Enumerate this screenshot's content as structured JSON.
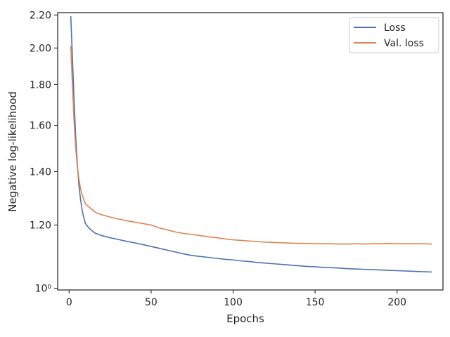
{
  "chart_data": {
    "type": "line",
    "title": "",
    "xlabel": "Epochs",
    "ylabel": "Negative log-likelihood",
    "xlim": [
      -7,
      228
    ],
    "ylim": [
      0.995,
      2.215
    ],
    "yscale": "log",
    "grid": false,
    "legend_position": "top-right",
    "x_ticks": [
      {
        "value": 0,
        "label": "0"
      },
      {
        "value": 50,
        "label": "50"
      },
      {
        "value": 100,
        "label": "100"
      },
      {
        "value": 150,
        "label": "150"
      },
      {
        "value": 200,
        "label": "200"
      }
    ],
    "y_ticks": [
      {
        "value": 1.0,
        "label": "10⁰"
      },
      {
        "value": 1.2,
        "label": "1.20"
      },
      {
        "value": 1.4,
        "label": "1.40"
      },
      {
        "value": 1.6,
        "label": "1.60"
      },
      {
        "value": 1.8,
        "label": "1.80"
      },
      {
        "value": 2.0,
        "label": "2.00"
      },
      {
        "value": 2.2,
        "label": "2.20"
      }
    ],
    "series": [
      {
        "name": "Loss",
        "color": "#4c72b0",
        "x": [
          1,
          2,
          3,
          4,
          5,
          6,
          7,
          8,
          9,
          10,
          12,
          14,
          16,
          18,
          20,
          25,
          30,
          35,
          40,
          45,
          50,
          55,
          60,
          65,
          70,
          75,
          80,
          85,
          90,
          95,
          100,
          105,
          110,
          115,
          120,
          125,
          130,
          135,
          140,
          145,
          150,
          155,
          160,
          165,
          170,
          175,
          180,
          185,
          190,
          195,
          200,
          205,
          210,
          215,
          221
        ],
        "y": [
          2.19,
          1.95,
          1.72,
          1.55,
          1.43,
          1.345,
          1.29,
          1.25,
          1.225,
          1.205,
          1.19,
          1.18,
          1.172,
          1.168,
          1.164,
          1.157,
          1.151,
          1.145,
          1.14,
          1.134,
          1.128,
          1.122,
          1.116,
          1.11,
          1.104,
          1.099,
          1.096,
          1.093,
          1.09,
          1.087,
          1.085,
          1.082,
          1.08,
          1.077,
          1.075,
          1.073,
          1.071,
          1.069,
          1.067,
          1.065,
          1.064,
          1.062,
          1.061,
          1.06,
          1.058,
          1.057,
          1.056,
          1.055,
          1.054,
          1.053,
          1.052,
          1.051,
          1.05,
          1.049,
          1.048
        ]
      },
      {
        "name": "Val. loss",
        "color": "#dd8452",
        "x": [
          1,
          2,
          3,
          4,
          5,
          6,
          7,
          8,
          9,
          10,
          12,
          14,
          16,
          18,
          20,
          25,
          30,
          35,
          40,
          45,
          50,
          55,
          60,
          65,
          70,
          75,
          80,
          85,
          90,
          95,
          100,
          105,
          110,
          115,
          120,
          125,
          130,
          135,
          140,
          145,
          150,
          155,
          160,
          165,
          170,
          175,
          180,
          185,
          190,
          195,
          200,
          205,
          210,
          215,
          221
        ],
        "y": [
          2.01,
          1.8,
          1.62,
          1.5,
          1.42,
          1.37,
          1.33,
          1.31,
          1.29,
          1.275,
          1.265,
          1.255,
          1.245,
          1.24,
          1.236,
          1.228,
          1.221,
          1.215,
          1.21,
          1.205,
          1.2,
          1.19,
          1.183,
          1.176,
          1.171,
          1.168,
          1.164,
          1.16,
          1.157,
          1.153,
          1.15,
          1.148,
          1.146,
          1.144,
          1.142,
          1.141,
          1.14,
          1.139,
          1.138,
          1.138,
          1.137,
          1.137,
          1.137,
          1.136,
          1.136,
          1.137,
          1.136,
          1.137,
          1.137,
          1.138,
          1.137,
          1.137,
          1.137,
          1.137,
          1.136
        ]
      }
    ]
  }
}
